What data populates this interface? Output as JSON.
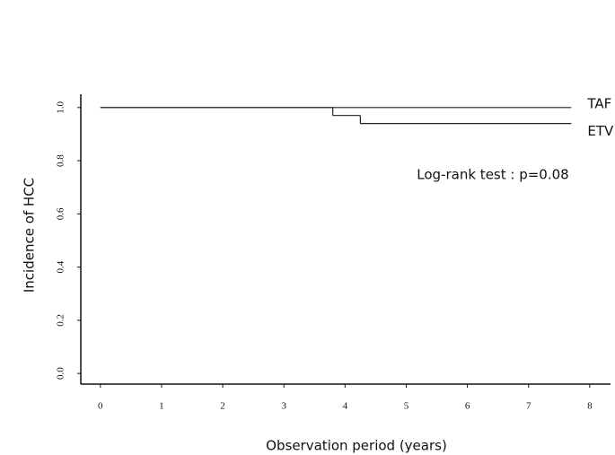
{
  "chart_data": {
    "type": "step",
    "xlabel": "Observation period (years)",
    "ylabel": "Incidence of HCC",
    "annotation": "Log-rank test : p=0.08",
    "xlim": [
      -0.32,
      8.34
    ],
    "ylim": [
      -0.04,
      1.05
    ],
    "xticks": [
      0,
      1,
      2,
      3,
      4,
      5,
      6,
      7,
      8
    ],
    "yticks": [
      {
        "value": 0,
        "label": "0.0"
      },
      0.2,
      0.4,
      0.6,
      0.8,
      {
        "value": 1,
        "label": "1.0"
      }
    ],
    "series": [
      {
        "name": "TAF",
        "color": "#222222",
        "x": [
          0,
          7.7
        ],
        "values": [
          1,
          1
        ]
      },
      {
        "name": "ETV",
        "color": "#222222",
        "x": [
          0,
          3.8,
          4.25,
          7.7
        ],
        "values": [
          1,
          0.97,
          0.94,
          0.94
        ]
      }
    ]
  }
}
